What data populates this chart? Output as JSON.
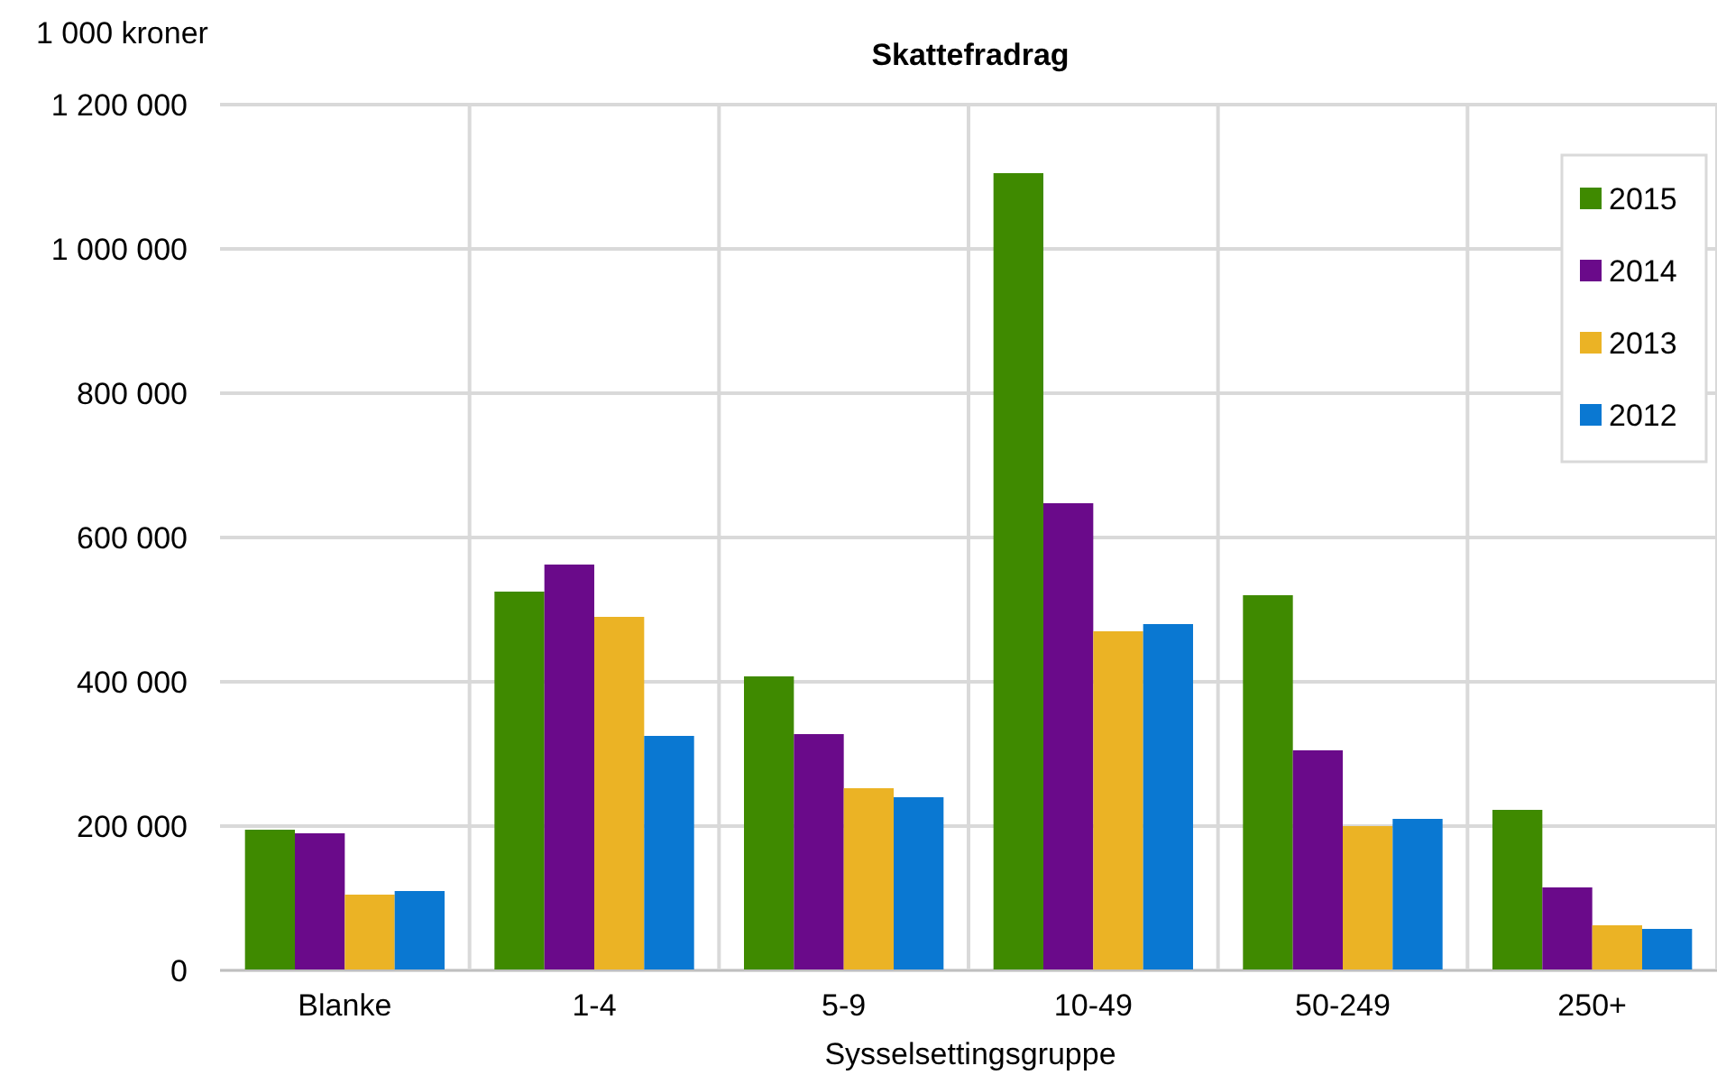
{
  "chart_data": {
    "type": "bar",
    "title": "Skattefradrag",
    "ylabel": "1 000 kroner",
    "xlabel": "Sysselsettingsgruppe",
    "categories": [
      "Blanke",
      "1-4",
      "5-9",
      "10-49",
      "50-249",
      "250+"
    ],
    "series": [
      {
        "name": "2015",
        "color": "#3f8a00",
        "values": [
          195000,
          525000,
          407500,
          1105000,
          520000,
          222500
        ]
      },
      {
        "name": "2014",
        "color": "#6a0a8a",
        "values": [
          190000,
          562500,
          327500,
          647500,
          305000,
          115000
        ]
      },
      {
        "name": "2013",
        "color": "#ebb325",
        "values": [
          105000,
          490000,
          252500,
          470000,
          200000,
          62500
        ]
      },
      {
        "name": "2012",
        "color": "#0a78d2",
        "values": [
          110000,
          325000,
          240000,
          480000,
          210000,
          57500
        ]
      }
    ],
    "ylim": [
      0,
      1200000
    ],
    "yticks": [
      0,
      {
        "value": 200000,
        "label": "200 000"
      },
      {
        "value": 400000,
        "label": "400 000"
      },
      {
        "value": 600000,
        "label": "600 000"
      },
      {
        "value": 800000,
        "label": "800 000"
      },
      {
        "value": 1000000,
        "label": "1 000 000"
      },
      {
        "value": 1200000,
        "label": "1 200 000"
      }
    ],
    "grid": true,
    "legend": "top right"
  }
}
